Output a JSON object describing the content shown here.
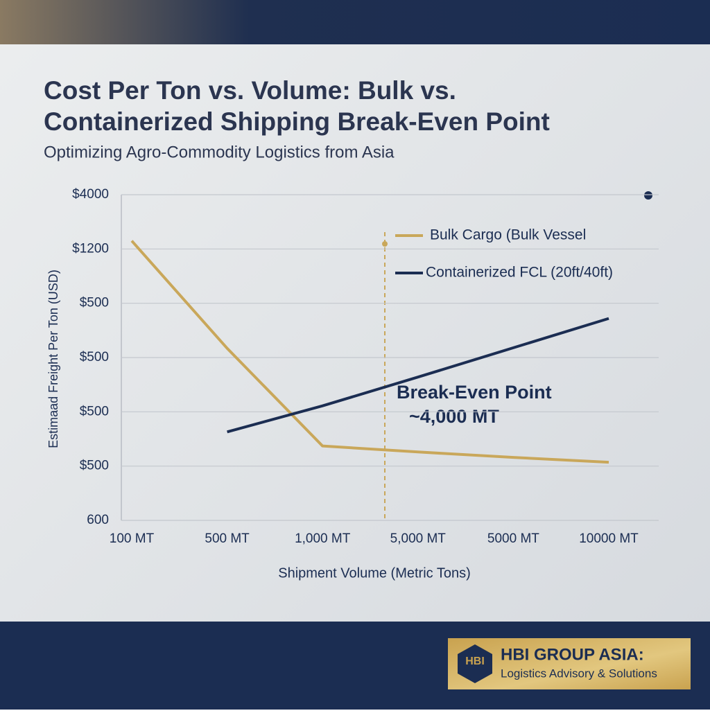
{
  "chart_data": {
    "type": "line",
    "title": [
      "Cost Per Ton vs. Volume: Bulk vs.",
      "Containerized Shipping Break-Even Point"
    ],
    "subtitle": "Optimizing Agro-Commodity Logistics from Asia",
    "x_label": "Shipment Volume (Metric Tons)",
    "y_label": "Estimaad Freight Per Ton (USD)",
    "categories": [
      "100 MT",
      "500 MT",
      "1,000 MT",
      "5,000 MT",
      "5000 MT",
      "10000 MT"
    ],
    "ylim": [
      0,
      6
    ],
    "yticks": [
      {
        "value": 0,
        "label": "600"
      },
      {
        "value": 1,
        "label": "$500"
      },
      {
        "value": 2,
        "label": "$500"
      },
      {
        "value": 3,
        "label": "$500"
      },
      {
        "value": 4,
        "label": "$500"
      },
      {
        "value": 5,
        "label": "$1200"
      },
      {
        "value": 6,
        "label": "$4000"
      }
    ],
    "grid": true,
    "series": [
      {
        "name": "Bulk Cargo (Bulk Vessel",
        "color": "#c9a75a",
        "values": [
          5.15,
          3.17,
          1.37,
          1.26,
          1.16,
          1.07
        ]
      },
      {
        "name": "Containerized FCL (20ft/40ft)",
        "color": "#1b2d52",
        "values": [
          null,
          1.63,
          2.11,
          2.64,
          3.18,
          3.72
        ]
      }
    ],
    "annotations": [
      "Break-Even Point",
      "~4,000 MT"
    ]
  },
  "branding": {
    "logo": "HBI",
    "name": "HBI GROUP ASIA:",
    "tagline": "Logistics Advisory & Solutions"
  }
}
